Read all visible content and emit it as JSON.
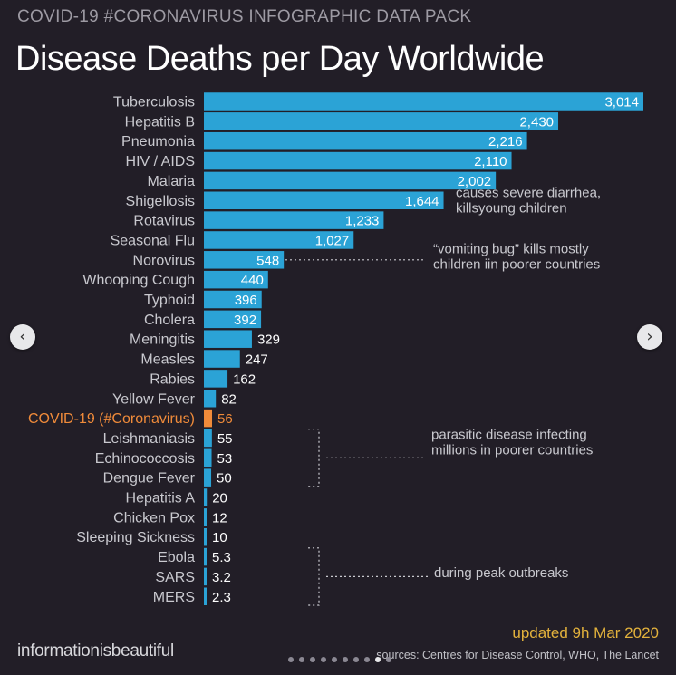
{
  "header": {
    "supertitle": "COVID-19 #CORONAVIRUS INFOGRAPHIC DATA PACK",
    "title": "Disease Deaths per Day Worldwide"
  },
  "footer": {
    "updated_prefix": "updated ",
    "updated_date": "9h Mar 2020",
    "brand": "informationisbeautiful",
    "sources": "sources: Centres for Disease Control, WHO, The Lancet"
  },
  "carousel": {
    "prev_icon": "chevron-left-icon",
    "next_icon": "chevron-right-icon",
    "dot_count": 10,
    "active_dot": 8
  },
  "colors": {
    "background": "#221e27",
    "bar": "#2ba3d6",
    "highlight": "#f08b3a",
    "annotation_color": "#c9c9cf"
  },
  "chart_data": {
    "type": "bar",
    "orientation": "horizontal",
    "categories": [
      "Tuberculosis",
      "Hepatitis B",
      "Pneumonia",
      "HIV / AIDS",
      "Malaria",
      "Shigellosis",
      "Rotavirus",
      "Seasonal Flu",
      "Norovirus",
      "Whooping Cough",
      "Typhoid",
      "Cholera",
      "Meningitis",
      "Measles",
      "Rabies",
      "Yellow Fever",
      "COVID-19 (#Coronavirus)",
      "Leishmaniasis",
      "Echinococcosis",
      "Dengue Fever",
      "Hepatitis A",
      "Chicken Pox",
      "Sleeping Sickness",
      "Ebola",
      "SARS",
      "MERS"
    ],
    "values": [
      3014,
      2430,
      2216,
      2110,
      2002,
      1644,
      1233,
      1027,
      548,
      440,
      396,
      392,
      329,
      247,
      162,
      82,
      56,
      55,
      53,
      50,
      20,
      12,
      10,
      5.3,
      3.2,
      2.3
    ],
    "value_labels": [
      "3,014",
      "2,430",
      "2,216",
      "2,110",
      "2,002",
      "1,644",
      "1,233",
      "1,027",
      "548",
      "440",
      "396",
      "392",
      "329",
      "247",
      "162",
      "82",
      "56",
      "55",
      "53",
      "50",
      "20",
      "12",
      "10",
      "5.3",
      "3.2",
      "2.3"
    ],
    "highlight": "COVID-19 (#Coronavirus)",
    "xlim": [
      0,
      3014
    ],
    "annotations": [
      {
        "lines": [
          "causes severe diarrhea,",
          "killsyoung children"
        ],
        "targets": [
          "Shigellosis",
          "Rotavirus"
        ]
      },
      {
        "lines": [
          "“vomiting bug” kills mostly",
          "children iin poorer countries"
        ],
        "targets": [
          "Norovirus"
        ]
      },
      {
        "lines": [
          "parasitic disease infecting",
          "millions in poorer countries"
        ],
        "targets": [
          "Leishmaniasis",
          "Echinococcosis",
          "Dengue Fever"
        ]
      },
      {
        "lines": [
          "during peak outbreaks"
        ],
        "targets": [
          "Ebola",
          "SARS",
          "MERS"
        ]
      }
    ]
  }
}
